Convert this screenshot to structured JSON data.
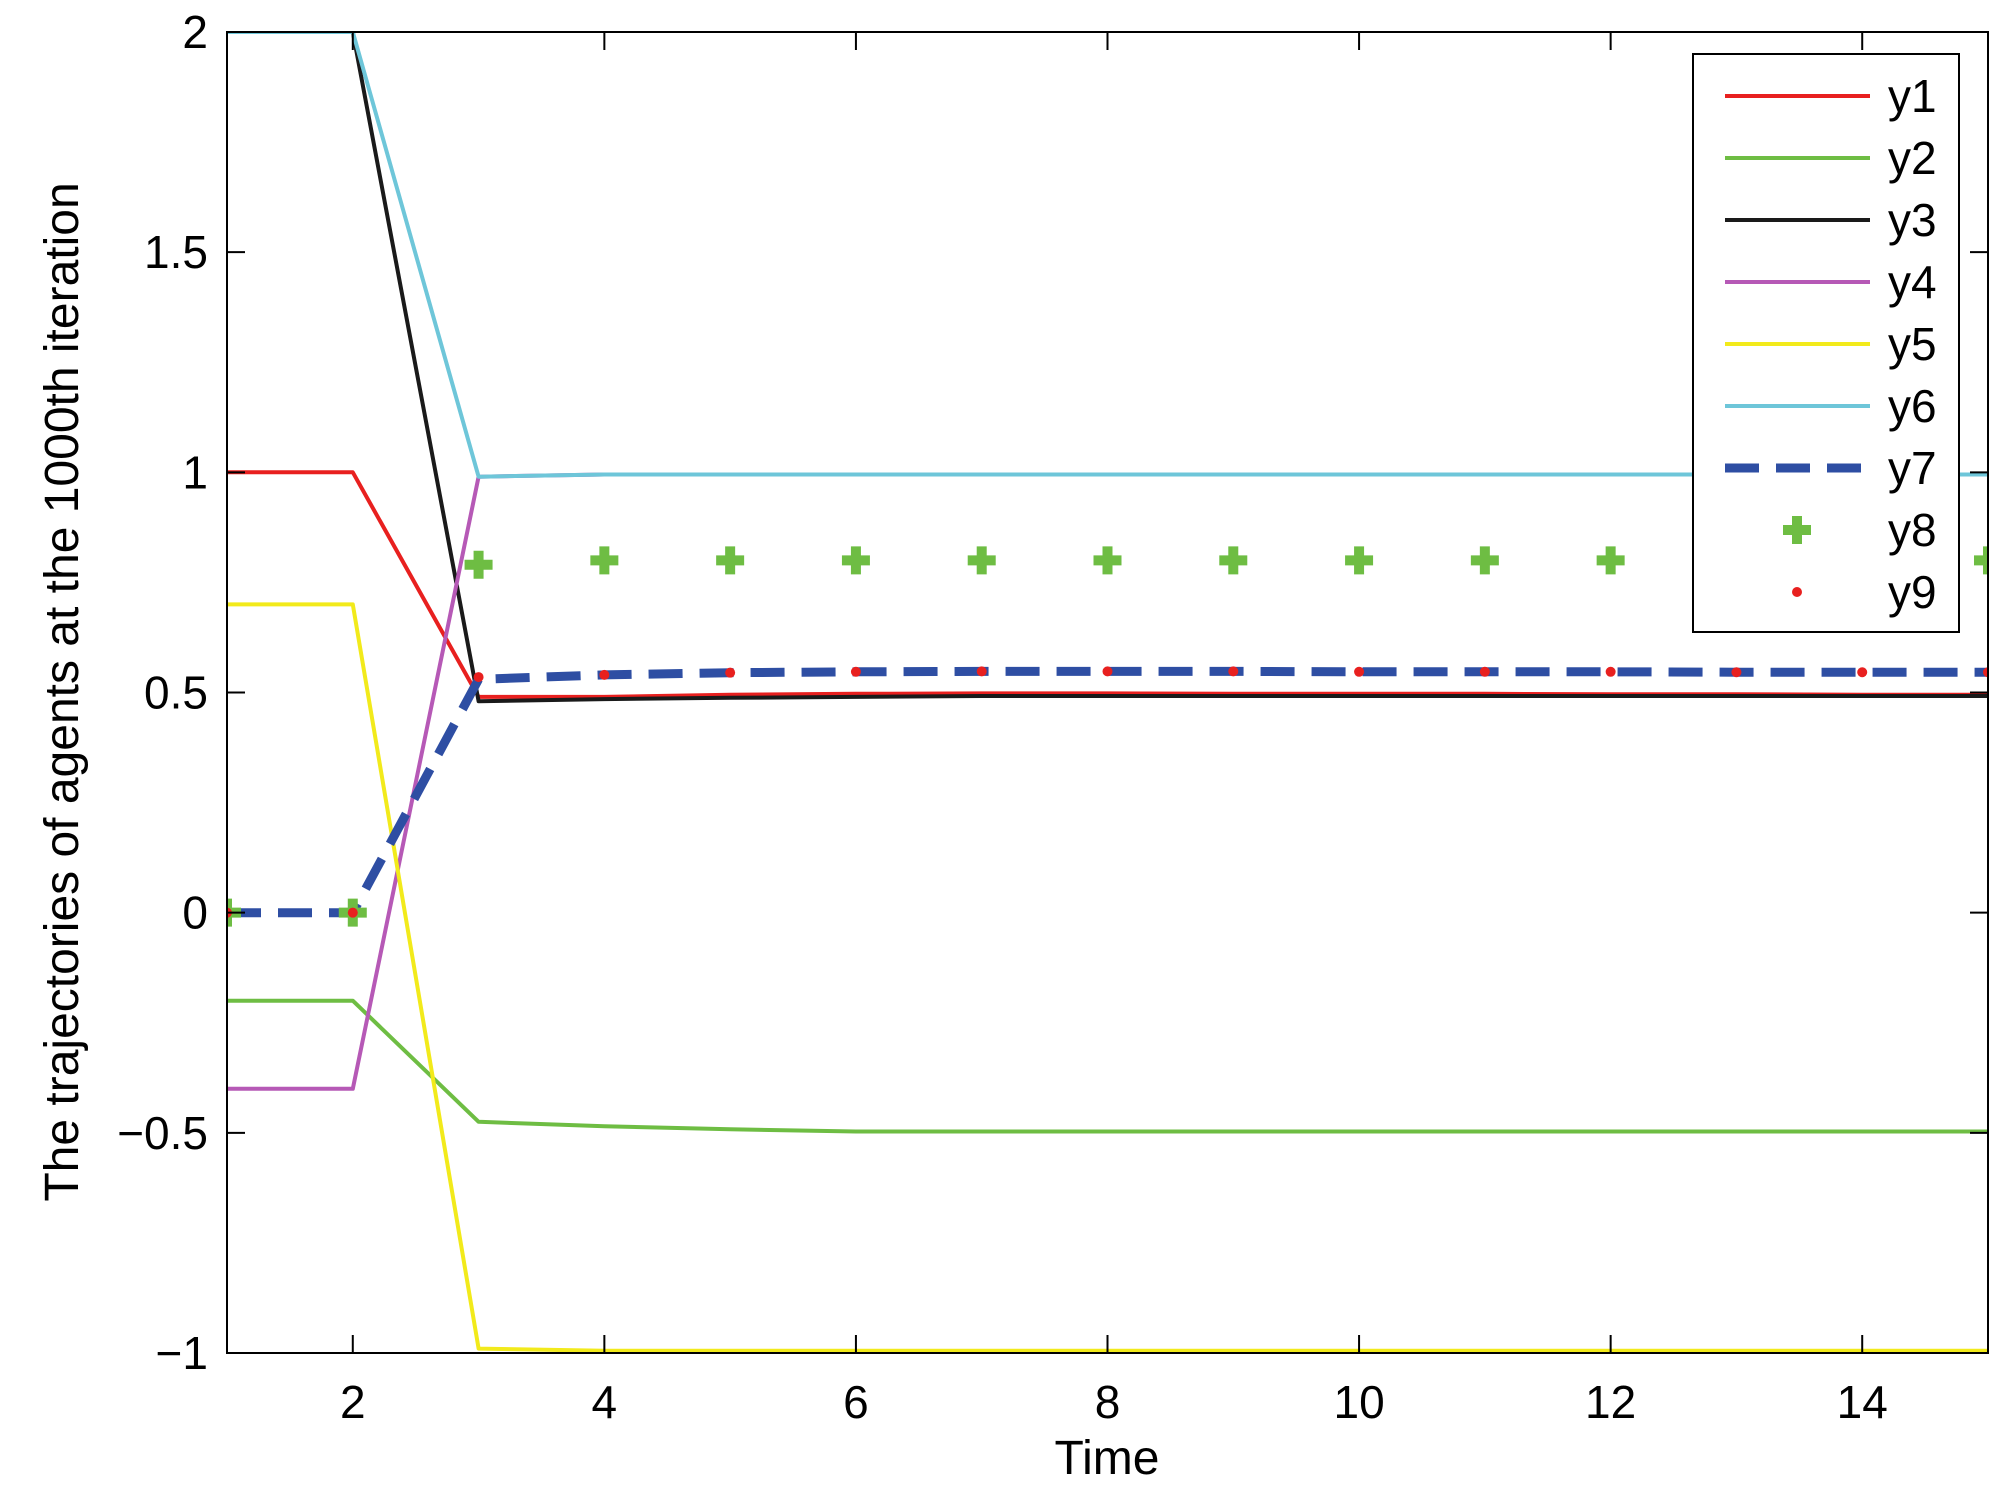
{
  "chart_data": {
    "type": "line",
    "title": "",
    "xlabel": "Time",
    "ylabel": "The trajectories of agents at the 1000th iteration",
    "xlim": [
      1,
      15
    ],
    "ylim": [
      -1,
      2
    ],
    "xticks": [
      2,
      4,
      6,
      8,
      10,
      12,
      14
    ],
    "yticks": [
      -1,
      -0.5,
      0,
      0.5,
      1,
      1.5,
      2
    ],
    "xtick_labels": [
      "2",
      "4",
      "6",
      "8",
      "10",
      "12",
      "14"
    ],
    "ytick_labels": [
      "−1",
      "−0.5",
      "0",
      "0.5",
      "1",
      "1.5",
      "2"
    ],
    "grid": false,
    "legend_position": "top-right",
    "x": [
      1,
      2,
      3,
      4,
      5,
      6,
      7,
      8,
      9,
      10,
      11,
      12,
      13,
      14,
      15
    ],
    "series": [
      {
        "name": "y1",
        "color": "#e8201f",
        "style": "solid",
        "values": [
          1,
          1,
          0.49,
          0.49,
          0.495,
          0.497,
          0.498,
          0.498,
          0.497,
          0.497,
          0.497,
          0.496,
          0.496,
          0.495,
          0.495
        ]
      },
      {
        "name": "y2",
        "color": "#6ebd43",
        "style": "solid",
        "values": [
          -0.2,
          -0.2,
          -0.475,
          -0.485,
          -0.492,
          -0.497,
          -0.497,
          -0.497,
          -0.497,
          -0.497,
          -0.497,
          -0.497,
          -0.497,
          -0.497,
          -0.497
        ]
      },
      {
        "name": "y3",
        "color": "#1a1a1a",
        "style": "solid",
        "values": [
          2,
          2,
          0.48,
          0.485,
          0.488,
          0.49,
          0.492,
          0.492,
          0.492,
          0.492,
          0.492,
          0.492,
          0.492,
          0.492,
          0.492
        ]
      },
      {
        "name": "y4",
        "color": "#b659b6",
        "style": "solid",
        "values": [
          -0.4,
          -0.4,
          0.99,
          0.995,
          0.995,
          0.995,
          0.995,
          0.995,
          0.995,
          0.995,
          0.995,
          0.995,
          0.995,
          0.995,
          0.995
        ]
      },
      {
        "name": "y5",
        "color": "#f2ea1b",
        "style": "solid",
        "values": [
          0.7,
          0.7,
          -0.99,
          -0.995,
          -0.995,
          -0.995,
          -0.995,
          -0.995,
          -0.995,
          -0.995,
          -0.995,
          -0.995,
          -0.995,
          -0.995,
          -0.995
        ]
      },
      {
        "name": "y6",
        "color": "#6ec6d9",
        "style": "solid",
        "values": [
          2,
          2,
          0.99,
          0.995,
          0.995,
          0.995,
          0.995,
          0.995,
          0.995,
          0.995,
          0.995,
          0.995,
          0.995,
          0.995,
          0.995
        ]
      },
      {
        "name": "y7",
        "color": "#2e4ea3",
        "style": "dashed",
        "values": [
          0,
          0,
          0.53,
          0.54,
          0.545,
          0.547,
          0.548,
          0.548,
          0.548,
          0.547,
          0.547,
          0.547,
          0.546,
          0.546,
          0.546
        ]
      },
      {
        "name": "y8",
        "color": "#6ebd43",
        "style": "plus",
        "values": [
          0,
          0,
          0.79,
          0.8,
          0.8,
          0.8,
          0.8,
          0.8,
          0.8,
          0.8,
          0.8,
          0.8,
          0.8,
          0.8,
          0.8
        ]
      },
      {
        "name": "y9",
        "color": "#e8201f",
        "style": "dot",
        "values": [
          0,
          0,
          0.535,
          0.54,
          0.545,
          0.547,
          0.548,
          0.548,
          0.548,
          0.547,
          0.547,
          0.547,
          0.546,
          0.546,
          0.546
        ]
      }
    ]
  }
}
